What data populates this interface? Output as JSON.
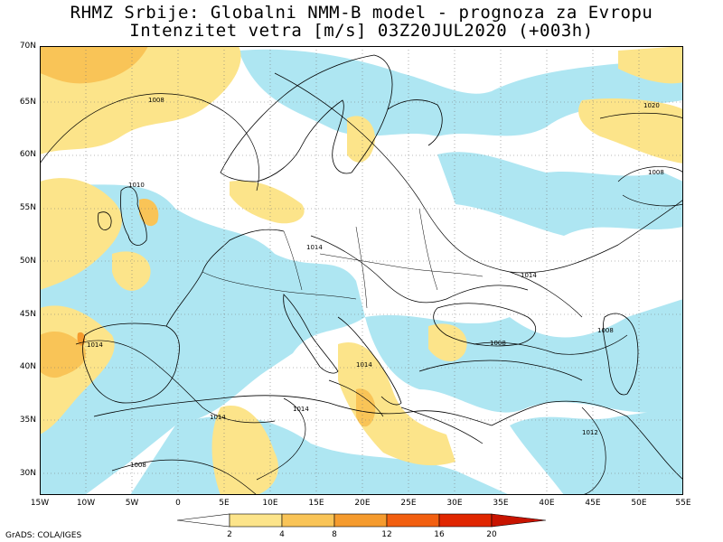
{
  "title": {
    "line1": "RHMZ Srbije: Globalni NMM-B model - prognoza za Evropu",
    "line2": "Intenzitet vetra [m/s] 03Z20JUL2020 (+003h)"
  },
  "axes": {
    "lat_labels": [
      "70N",
      "65N",
      "60N",
      "55N",
      "50N",
      "45N",
      "40N",
      "35N",
      "30N"
    ],
    "lon_labels": [
      "15W",
      "10W",
      "5W",
      "0",
      "5E",
      "10E",
      "15E",
      "20E",
      "25E",
      "30E",
      "35E",
      "40E",
      "45E",
      "50E",
      "55E"
    ]
  },
  "isobar_labels": [
    "1008",
    "1020",
    "1008",
    "1010",
    "1014",
    "1014",
    "1014",
    "1014",
    "1014",
    "1008",
    "1008",
    "1012",
    "1014",
    "1008"
  ],
  "colorbar": {
    "labels": [
      "2",
      "4",
      "8",
      "12",
      "16",
      "20"
    ],
    "colors": [
      "#ffffff",
      "#aee6f2",
      "#fce48a",
      "#f9c457",
      "#f59b2e",
      "#f25f10",
      "#e02600",
      "#c81400"
    ]
  },
  "footer": "GrADS: COLA/IGES"
}
